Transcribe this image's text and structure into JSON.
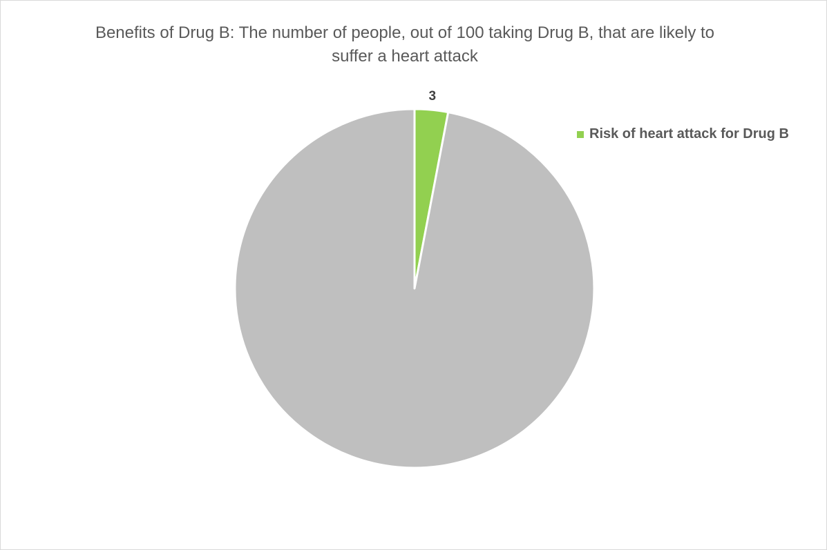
{
  "chart_data": {
    "type": "pie",
    "title": "Benefits of Drug B: The number of people, out of 100 taking Drug B, that are likely to suffer a heart attack",
    "total": 100,
    "slices": [
      {
        "name": "Risk of heart attack for Drug B",
        "value": 3,
        "label": "3",
        "color": "#92d050",
        "in_legend": true
      },
      {
        "name": "",
        "value": 97,
        "label": "",
        "color": "#bfbfbf",
        "in_legend": false
      }
    ],
    "legend": {
      "placement": "right",
      "entries": [
        "Risk of heart attack for Drug B"
      ]
    }
  }
}
